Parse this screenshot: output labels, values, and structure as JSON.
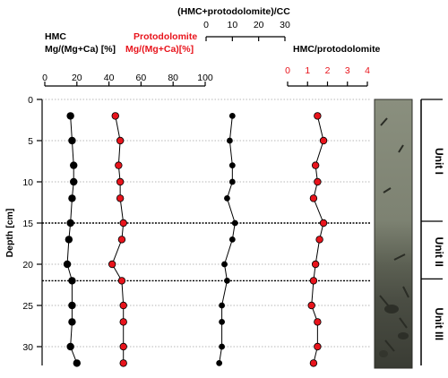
{
  "chart_data": {
    "type": "line",
    "colors": {
      "black": "#000000",
      "red": "#e8141c"
    },
    "depth": [
      2,
      5,
      8,
      10,
      12,
      15,
      17,
      20,
      22,
      25,
      27,
      30,
      32
    ],
    "y_axis": {
      "label": "Depth [cm]",
      "lim": [
        0,
        33
      ],
      "ticks": [
        0,
        5,
        10,
        15,
        20,
        25,
        30
      ]
    },
    "title_top": "(HMC+protodolomite)/CC",
    "hmc_label_1": "HMC",
    "hmc_label_2": "Mg/(Mg+Ca) [%]",
    "proto_label_1": "Protodolomite",
    "proto_label_2": "Mg/(Mg+Ca)[%]",
    "ratio_label": "HMC/protodolomite",
    "axis_mg": {
      "lim": [
        0,
        100
      ],
      "ticks": [
        0,
        20,
        40,
        60,
        80,
        100
      ]
    },
    "axis_cc": {
      "lim": [
        0,
        30
      ],
      "ticks": [
        0,
        10,
        20,
        30
      ]
    },
    "axis_ratio": {
      "lim": [
        0,
        4
      ],
      "ticks": [
        0,
        1,
        2,
        3,
        4
      ]
    },
    "series": [
      {
        "name": "HMC",
        "color": "black",
        "axis": "mg",
        "values": [
          16,
          17,
          18,
          18,
          17,
          16,
          15,
          14,
          17,
          17,
          17,
          16,
          20
        ]
      },
      {
        "name": "Protodolomite",
        "color": "red",
        "axis": "mg",
        "values": [
          44,
          47,
          46,
          47,
          47,
          49,
          48,
          42,
          48,
          49,
          49,
          49,
          49
        ]
      },
      {
        "name": "(HMC+protodolomite)/CC",
        "color": "black",
        "axis": "cc",
        "values": [
          10,
          9,
          10,
          10,
          8,
          11,
          10,
          7,
          8,
          6,
          6,
          6,
          5
        ]
      },
      {
        "name": "HMC/protodolomite",
        "color": "red",
        "axis": "ratio",
        "values": [
          1.5,
          1.8,
          1.4,
          1.5,
          1.3,
          1.8,
          1.6,
          1.4,
          1.3,
          1.2,
          1.5,
          1.5,
          1.3
        ]
      }
    ],
    "boundaries": [
      15,
      22
    ],
    "units": [
      {
        "label": "Unit I",
        "from": 0,
        "to": 15
      },
      {
        "label": "Unit II",
        "from": 15,
        "to": 22
      },
      {
        "label": "Unit III",
        "from": 22,
        "to": 33
      }
    ]
  }
}
